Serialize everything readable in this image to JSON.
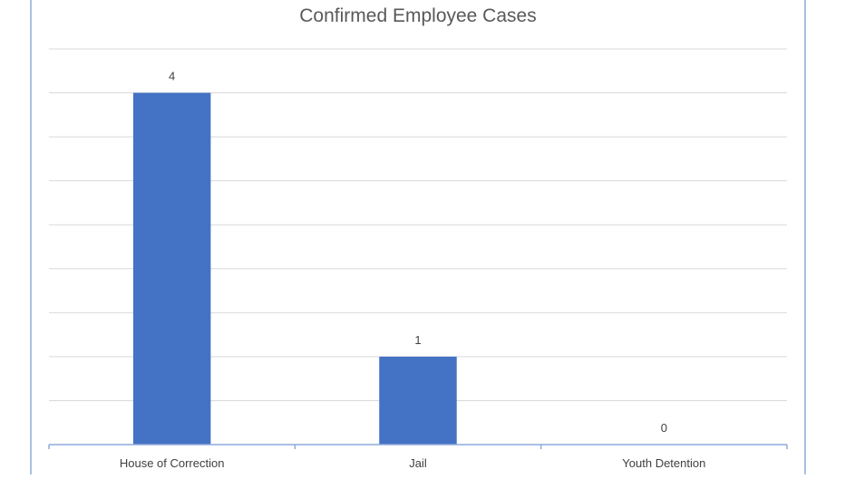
{
  "chart_data": {
    "type": "bar",
    "title": "Confirmed Employee Cases",
    "categories": [
      "House of Correction",
      "Jail",
      "Youth Detention"
    ],
    "values": [
      4,
      1,
      0
    ],
    "data_labels": [
      "4",
      "1",
      "0"
    ],
    "xlabel": "",
    "ylabel": "",
    "ylim": [
      0,
      4.5
    ],
    "grid": true,
    "legend": "none",
    "bar_color": "#4472C4",
    "grid_color": "#D9D9D9",
    "axis_color": "#8FAADC",
    "frame_color": "#8FAADC"
  }
}
